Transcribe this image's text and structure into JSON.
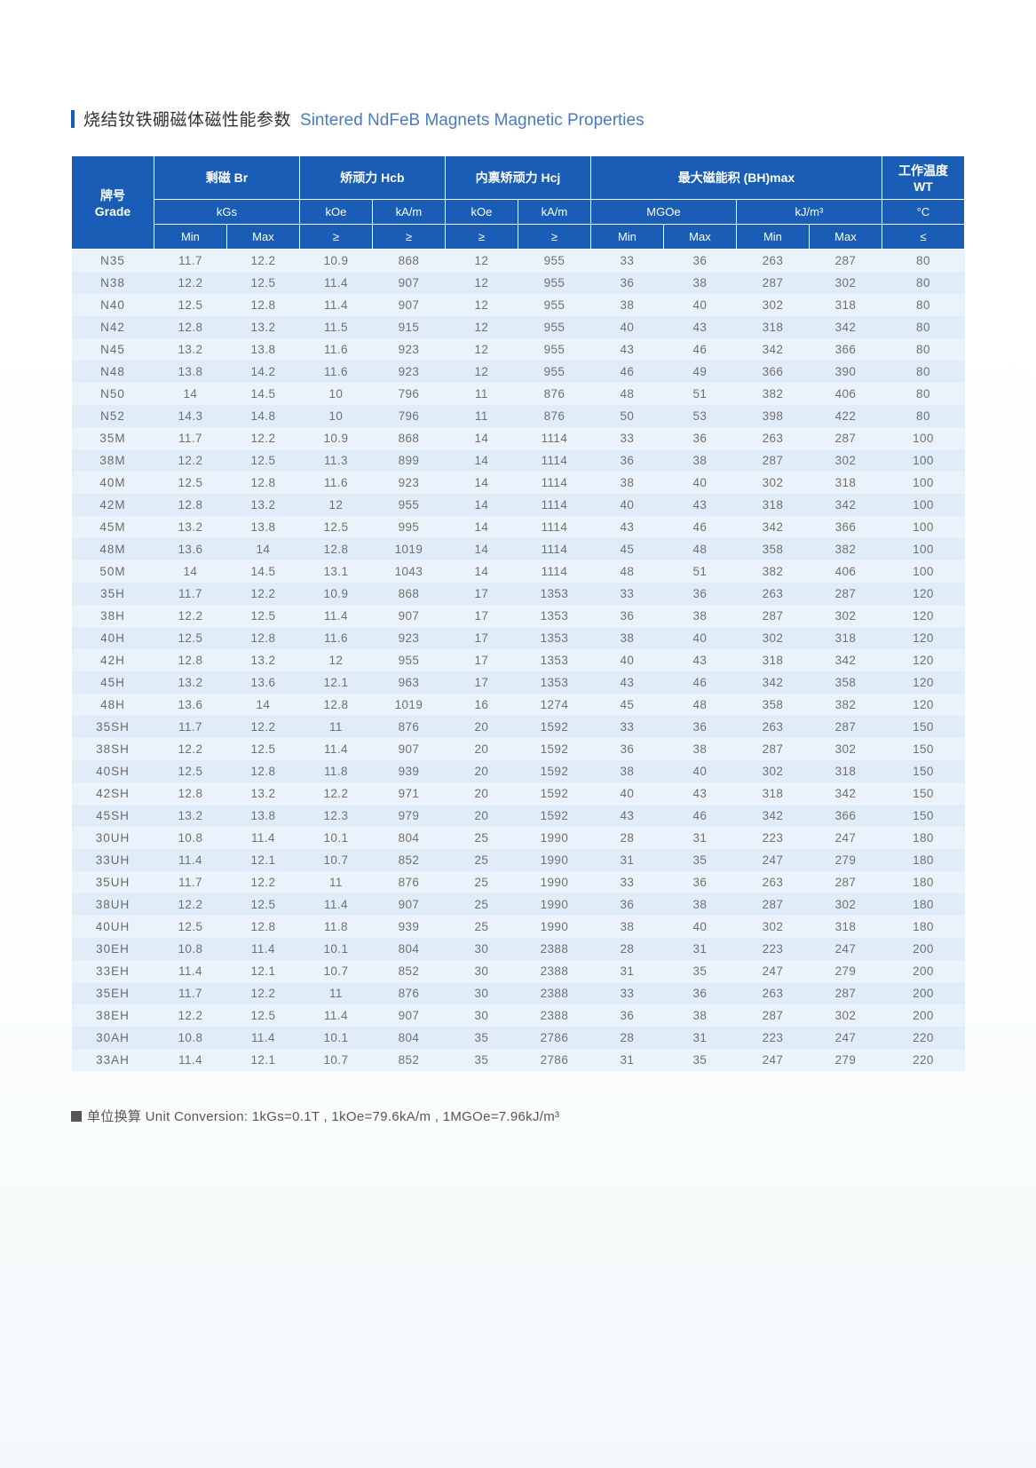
{
  "title": {
    "cn": "烧结钕铁硼磁体磁性能参数",
    "en": "Sintered NdFeB Magnets Magnetic Properties"
  },
  "footer": "单位换算 Unit Conversion: 1kGs=0.1T , 1kOe=79.6kA/m , 1MGOe=7.96kJ/m³",
  "table": {
    "background_odd": "#eaf3fb",
    "background_even": "#e0edf8",
    "header_color": "#1a5db6",
    "header_text_color": "#ffffff",
    "body_text_color": "#707070",
    "font_size_body": 13.5,
    "font_size_header": 14,
    "header_groups": [
      {
        "label_cn": "牌号",
        "label_en": "Grade",
        "unit_labels": [],
        "sub_cols": [
          ""
        ]
      },
      {
        "label_cn": "剩磁",
        "label_en": "Br",
        "unit_labels": [
          "kGs"
        ],
        "sub_cols": [
          "Min",
          "Max"
        ]
      },
      {
        "label_cn": "矫顽力",
        "label_en": "Hcb",
        "unit_labels": [
          "kOe",
          "kA/m"
        ],
        "sub_cols": [
          "≥",
          "≥"
        ]
      },
      {
        "label_cn": "内禀矫顽力",
        "label_en": "Hcj",
        "unit_labels": [
          "kOe",
          "kA/m"
        ],
        "sub_cols": [
          "≥",
          "≥"
        ]
      },
      {
        "label_cn": "最大磁能积",
        "label_en": "(BH)max",
        "unit_labels": [
          "MGOe",
          "kJ/m³"
        ],
        "sub_cols": [
          "Min",
          "Max",
          "Min",
          "Max"
        ]
      },
      {
        "label_cn": "工作温度",
        "label_en": "WT",
        "unit_labels": [
          "°C"
        ],
        "sub_cols": [
          "≤"
        ]
      }
    ],
    "row1_labels": {
      "grade": "牌号\nGrade",
      "br": "剩磁 Br",
      "hcb": "矫顽力 Hcb",
      "hcj": "内禀矫顽力 Hcj",
      "bhmax": "最大磁能积 (BH)max",
      "wt_line1": "工作温度",
      "wt_line2": "WT"
    },
    "row2_labels": {
      "kgs": "kGs",
      "koe": "kOe",
      "kam": "kA/m",
      "mgoe": "MGOe",
      "kjm": "kJ/m³",
      "degc": "°C"
    },
    "row3_labels": {
      "min": "Min",
      "max": "Max",
      "ge": "≥",
      "le": "≤"
    },
    "columns_meaning": [
      "Grade",
      "Br_kGs_Min",
      "Br_kGs_Max",
      "Hcb_kOe",
      "Hcb_kA/m",
      "Hcj_kOe",
      "Hcj_kA/m",
      "BHmax_MGOe_Min",
      "BHmax_MGOe_Max",
      "BHmax_kJ/m3_Min",
      "BHmax_kJ/m3_Max",
      "WT_degC"
    ],
    "rows": [
      [
        "N35",
        "11.7",
        "12.2",
        "10.9",
        "868",
        "12",
        "955",
        "33",
        "36",
        "263",
        "287",
        "80"
      ],
      [
        "N38",
        "12.2",
        "12.5",
        "11.4",
        "907",
        "12",
        "955",
        "36",
        "38",
        "287",
        "302",
        "80"
      ],
      [
        "N40",
        "12.5",
        "12.8",
        "11.4",
        "907",
        "12",
        "955",
        "38",
        "40",
        "302",
        "318",
        "80"
      ],
      [
        "N42",
        "12.8",
        "13.2",
        "11.5",
        "915",
        "12",
        "955",
        "40",
        "43",
        "318",
        "342",
        "80"
      ],
      [
        "N45",
        "13.2",
        "13.8",
        "11.6",
        "923",
        "12",
        "955",
        "43",
        "46",
        "342",
        "366",
        "80"
      ],
      [
        "N48",
        "13.8",
        "14.2",
        "11.6",
        "923",
        "12",
        "955",
        "46",
        "49",
        "366",
        "390",
        "80"
      ],
      [
        "N50",
        "14",
        "14.5",
        "10",
        "796",
        "11",
        "876",
        "48",
        "51",
        "382",
        "406",
        "80"
      ],
      [
        "N52",
        "14.3",
        "14.8",
        "10",
        "796",
        "11",
        "876",
        "50",
        "53",
        "398",
        "422",
        "80"
      ],
      [
        "35M",
        "11.7",
        "12.2",
        "10.9",
        "868",
        "14",
        "1114",
        "33",
        "36",
        "263",
        "287",
        "100"
      ],
      [
        "38M",
        "12.2",
        "12.5",
        "11.3",
        "899",
        "14",
        "1114",
        "36",
        "38",
        "287",
        "302",
        "100"
      ],
      [
        "40M",
        "12.5",
        "12.8",
        "11.6",
        "923",
        "14",
        "1114",
        "38",
        "40",
        "302",
        "318",
        "100"
      ],
      [
        "42M",
        "12.8",
        "13.2",
        "12",
        "955",
        "14",
        "1114",
        "40",
        "43",
        "318",
        "342",
        "100"
      ],
      [
        "45M",
        "13.2",
        "13.8",
        "12.5",
        "995",
        "14",
        "1114",
        "43",
        "46",
        "342",
        "366",
        "100"
      ],
      [
        "48M",
        "13.6",
        "14",
        "12.8",
        "1019",
        "14",
        "1114",
        "45",
        "48",
        "358",
        "382",
        "100"
      ],
      [
        "50M",
        "14",
        "14.5",
        "13.1",
        "1043",
        "14",
        "1114",
        "48",
        "51",
        "382",
        "406",
        "100"
      ],
      [
        "35H",
        "11.7",
        "12.2",
        "10.9",
        "868",
        "17",
        "1353",
        "33",
        "36",
        "263",
        "287",
        "120"
      ],
      [
        "38H",
        "12.2",
        "12.5",
        "11.4",
        "907",
        "17",
        "1353",
        "36",
        "38",
        "287",
        "302",
        "120"
      ],
      [
        "40H",
        "12.5",
        "12.8",
        "11.6",
        "923",
        "17",
        "1353",
        "38",
        "40",
        "302",
        "318",
        "120"
      ],
      [
        "42H",
        "12.8",
        "13.2",
        "12",
        "955",
        "17",
        "1353",
        "40",
        "43",
        "318",
        "342",
        "120"
      ],
      [
        "45H",
        "13.2",
        "13.6",
        "12.1",
        "963",
        "17",
        "1353",
        "43",
        "46",
        "342",
        "358",
        "120"
      ],
      [
        "48H",
        "13.6",
        "14",
        "12.8",
        "1019",
        "16",
        "1274",
        "45",
        "48",
        "358",
        "382",
        "120"
      ],
      [
        "35SH",
        "11.7",
        "12.2",
        "11",
        "876",
        "20",
        "1592",
        "33",
        "36",
        "263",
        "287",
        "150"
      ],
      [
        "38SH",
        "12.2",
        "12.5",
        "11.4",
        "907",
        "20",
        "1592",
        "36",
        "38",
        "287",
        "302",
        "150"
      ],
      [
        "40SH",
        "12.5",
        "12.8",
        "11.8",
        "939",
        "20",
        "1592",
        "38",
        "40",
        "302",
        "318",
        "150"
      ],
      [
        "42SH",
        "12.8",
        "13.2",
        "12.2",
        "971",
        "20",
        "1592",
        "40",
        "43",
        "318",
        "342",
        "150"
      ],
      [
        "45SH",
        "13.2",
        "13.8",
        "12.3",
        "979",
        "20",
        "1592",
        "43",
        "46",
        "342",
        "366",
        "150"
      ],
      [
        "30UH",
        "10.8",
        "11.4",
        "10.1",
        "804",
        "25",
        "1990",
        "28",
        "31",
        "223",
        "247",
        "180"
      ],
      [
        "33UH",
        "11.4",
        "12.1",
        "10.7",
        "852",
        "25",
        "1990",
        "31",
        "35",
        "247",
        "279",
        "180"
      ],
      [
        "35UH",
        "11.7",
        "12.2",
        "11",
        "876",
        "25",
        "1990",
        "33",
        "36",
        "263",
        "287",
        "180"
      ],
      [
        "38UH",
        "12.2",
        "12.5",
        "11.4",
        "907",
        "25",
        "1990",
        "36",
        "38",
        "287",
        "302",
        "180"
      ],
      [
        "40UH",
        "12.5",
        "12.8",
        "11.8",
        "939",
        "25",
        "1990",
        "38",
        "40",
        "302",
        "318",
        "180"
      ],
      [
        "30EH",
        "10.8",
        "11.4",
        "10.1",
        "804",
        "30",
        "2388",
        "28",
        "31",
        "223",
        "247",
        "200"
      ],
      [
        "33EH",
        "11.4",
        "12.1",
        "10.7",
        "852",
        "30",
        "2388",
        "31",
        "35",
        "247",
        "279",
        "200"
      ],
      [
        "35EH",
        "11.7",
        "12.2",
        "11",
        "876",
        "30",
        "2388",
        "33",
        "36",
        "263",
        "287",
        "200"
      ],
      [
        "38EH",
        "12.2",
        "12.5",
        "11.4",
        "907",
        "30",
        "2388",
        "36",
        "38",
        "287",
        "302",
        "200"
      ],
      [
        "30AH",
        "10.8",
        "11.4",
        "10.1",
        "804",
        "35",
        "2786",
        "28",
        "31",
        "223",
        "247",
        "220"
      ],
      [
        "33AH",
        "11.4",
        "12.1",
        "10.7",
        "852",
        "35",
        "2786",
        "31",
        "35",
        "247",
        "279",
        "220"
      ]
    ]
  }
}
